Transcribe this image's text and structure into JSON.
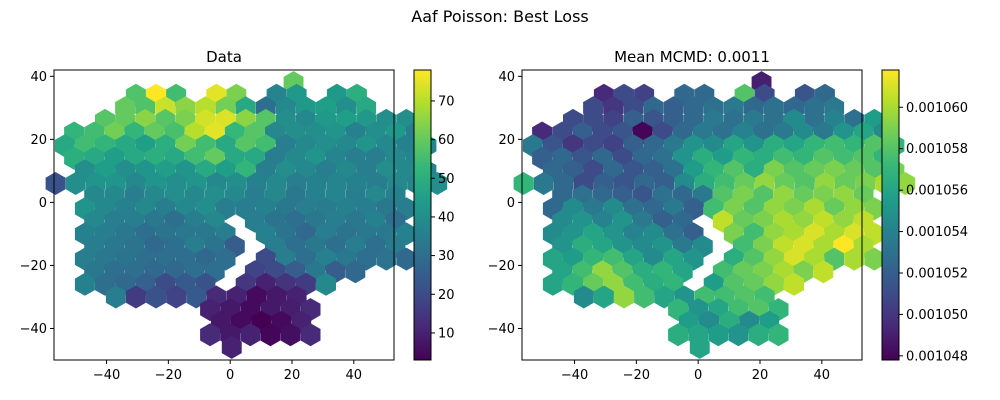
{
  "suptitle": "Aaf Poisson: Best Loss",
  "chart_data": [
    {
      "type": "heatmap",
      "subtype": "hexbin",
      "title": "Data",
      "xlabel": "",
      "ylabel": "",
      "xlim": [
        -57,
        53
      ],
      "ylim": [
        -50,
        42
      ],
      "xticks": [
        -40,
        -20,
        0,
        20,
        40
      ],
      "yticks": [
        -40,
        -20,
        0,
        20,
        40
      ],
      "xtick_labels": [
        "−40",
        "−20",
        "0",
        "20",
        "40"
      ],
      "ytick_labels": [
        "−40",
        "−20",
        "0",
        "20",
        "40"
      ],
      "colormap": "viridis",
      "colorbar": {
        "min": 3,
        "max": 78,
        "ticks": [
          10,
          20,
          30,
          40,
          50,
          60,
          70
        ],
        "tick_labels": [
          "10",
          "20",
          "30",
          "40",
          "50",
          "60",
          "70"
        ]
      },
      "hex_spacing": [
        6.5,
        7.8
      ],
      "rows": [
        {
          "y": 38,
          "x0": 20.5,
          "values": [
            60
          ]
        },
        {
          "y": 34,
          "x0": -30.5,
          "values": [
            57,
            78,
            55,
            null,
            75,
            63,
            null,
            37,
            43,
            null,
            43,
            50
          ]
        },
        {
          "y": 30,
          "x0": -34,
          "values": [
            60,
            57,
            72,
            65,
            70,
            62,
            48,
            30,
            38,
            43,
            45,
            40,
            48
          ]
        },
        {
          "y": 26,
          "x0": -40.5,
          "values": [
            58,
            60,
            65,
            58,
            63,
            73,
            74,
            65,
            58,
            40,
            38,
            43,
            45,
            43,
            40,
            40
          ]
        },
        {
          "y": 22,
          "x0": -50.5,
          "values": [
            52,
            55,
            62,
            52,
            60,
            56,
            70,
            75,
            53,
            58,
            38,
            40,
            40,
            42,
            36,
            40,
            43,
            35
          ]
        },
        {
          "y": 18,
          "x0": -53.5,
          "values": [
            48,
            55,
            52,
            48,
            45,
            50,
            62,
            55,
            48,
            58,
            55,
            35,
            38,
            40,
            38,
            42,
            38,
            36,
            37
          ]
        },
        {
          "y": 14,
          "x0": -50.5,
          "values": [
            50,
            48,
            45,
            48,
            50,
            48,
            55,
            60,
            48,
            48,
            35,
            38,
            42,
            37,
            35,
            35,
            38,
            37
          ]
        },
        {
          "y": 10,
          "x0": -47,
          "values": [
            40,
            45,
            40,
            42,
            45,
            42,
            48,
            45,
            52,
            35,
            40,
            38,
            35,
            38,
            35,
            40,
            38,
            36
          ]
        },
        {
          "y": 6,
          "x0": -56.5,
          "values": [
            22,
            40,
            42,
            42,
            38,
            42,
            40,
            42,
            38,
            40,
            36,
            38,
            35,
            36,
            37,
            36,
            35,
            38,
            37,
            40
          ]
        },
        {
          "y": 2,
          "x0": -44,
          "values": [
            38,
            38,
            35,
            38,
            40,
            38,
            40,
            38,
            35,
            38,
            33,
            36,
            37,
            35,
            38,
            36
          ]
        },
        {
          "y": -2,
          "x0": -47,
          "values": [
            42,
            38,
            36,
            38,
            35,
            38,
            40,
            35,
            35,
            36,
            33,
            35,
            34,
            36,
            35,
            33,
            35
          ]
        },
        {
          "y": -6,
          "x0": -44,
          "values": [
            38,
            35,
            35,
            33,
            30,
            35,
            38,
            null,
            35,
            32,
            30,
            33,
            35,
            33,
            36,
            30
          ]
        },
        {
          "y": -10,
          "x0": -47,
          "values": [
            36,
            35,
            33,
            30,
            32,
            33,
            33,
            35,
            null,
            36,
            32,
            28,
            35,
            32,
            33,
            33,
            36
          ]
        },
        {
          "y": -14,
          "x0": -44,
          "values": [
            35,
            33,
            32,
            28,
            30,
            35,
            32,
            25,
            null,
            35,
            30,
            33,
            30,
            35,
            30,
            34
          ]
        },
        {
          "y": -18,
          "x0": -47,
          "values": [
            35,
            33,
            32,
            30,
            30,
            30,
            28,
            30,
            null,
            20,
            35,
            30,
            36,
            33,
            30,
            32,
            28
          ]
        },
        {
          "y": -22,
          "x0": -44,
          "values": [
            33,
            30,
            30,
            28,
            28,
            30,
            30,
            null,
            18,
            20,
            25,
            33,
            25,
            28
          ]
        },
        {
          "y": -26,
          "x0": -47,
          "values": [
            36,
            30,
            28,
            26,
            20,
            24,
            22,
            null,
            15,
            10,
            14,
            16,
            38
          ]
        },
        {
          "y": -30,
          "x0": -37,
          "values": [
            35,
            16,
            22,
            18,
            24,
            12,
            10,
            5,
            8,
            10
          ]
        },
        {
          "y": -34,
          "x0": -6.5,
          "values": [
            10,
            8,
            5,
            8,
            9,
            12
          ]
        },
        {
          "y": -38,
          "x0": -3,
          "values": [
            8,
            5,
            3,
            5,
            10
          ]
        },
        {
          "y": -42,
          "x0": -6.5,
          "values": [
            12,
            8,
            10,
            4,
            6,
            12
          ]
        },
        {
          "y": -46,
          "x0": 0.5,
          "values": [
            10
          ]
        }
      ]
    },
    {
      "type": "heatmap",
      "subtype": "hexbin",
      "title": "Mean MCMD: 0.0011",
      "xlabel": "",
      "ylabel": "",
      "xlim": [
        -57,
        53
      ],
      "ylim": [
        -50,
        42
      ],
      "xticks": [
        -40,
        -20,
        0,
        20,
        40
      ],
      "yticks": [
        -40,
        -20,
        0,
        20,
        40
      ],
      "xtick_labels": [
        "−40",
        "−20",
        "0",
        "20",
        "40"
      ],
      "ytick_labels": [
        "−40",
        "−20",
        "0",
        "20",
        "40"
      ],
      "colormap": "viridis",
      "colorbar": {
        "min": 0.0010478,
        "max": 0.0010618,
        "ticks": [
          0.001048,
          0.00105,
          0.001052,
          0.001054,
          0.001056,
          0.001058,
          0.00106
        ],
        "tick_labels": [
          "0.001048",
          "0.001050",
          "0.001052",
          "0.001054",
          "0.001056",
          "0.001058",
          "0.001060"
        ]
      },
      "hex_spacing": [
        6.5,
        7.8
      ],
      "rows": [
        {
          "y": 38,
          "x0": 20.5,
          "values": [
            0.001049
          ]
        },
        {
          "y": 34,
          "x0": -30.5,
          "values": [
            0.0010495,
            0.001051,
            0.0010505,
            null,
            0.0010525,
            0.0010525,
            null,
            0.001058,
            0.001051,
            null,
            0.0010515,
            0.0010525
          ]
        },
        {
          "y": 30,
          "x0": -34,
          "values": [
            0.001051,
            0.00105,
            0.001051,
            0.0010525,
            0.001052,
            0.0010525,
            0.001053,
            0.0010535,
            0.0010525,
            0.001053,
            0.0010525,
            0.001053,
            0.0010535
          ]
        },
        {
          "y": 26,
          "x0": -40.5,
          "values": [
            0.001051,
            0.001051,
            0.0010505,
            0.001052,
            0.0010515,
            0.001052,
            0.0010525,
            0.0010535,
            0.001053,
            0.0010535,
            0.001053,
            0.0010545,
            0.001053,
            0.001054,
            0.001053,
            0.0010555
          ]
        },
        {
          "y": 22,
          "x0": -50.5,
          "values": [
            0.0010495,
            0.001051,
            0.001052,
            0.001051,
            0.0010515,
            0.001048,
            0.001051,
            0.0010525,
            0.0010535,
            0.001053,
            0.001054,
            0.001053,
            0.0010535,
            0.0010545,
            0.0010535,
            0.001055,
            0.001056,
            0.0010545
          ]
        },
        {
          "y": 18,
          "x0": -53.5,
          "values": [
            0.0010535,
            0.0010515,
            0.00105,
            0.001051,
            0.0010505,
            0.001052,
            0.0010525,
            0.0010535,
            0.001055,
            0.0010545,
            0.001056,
            0.001055,
            0.0010565,
            0.001056,
            0.001057,
            0.0010575,
            0.001057,
            0.001058,
            0.001057
          ]
        },
        {
          "y": 14,
          "x0": -50.5,
          "values": [
            0.001052,
            0.0010525,
            0.0010515,
            0.0010525,
            0.001051,
            0.0010525,
            0.001053,
            0.001055,
            0.0010565,
            0.0010555,
            0.001057,
            0.0010565,
            0.0010575,
            0.001057,
            0.001058,
            0.0010575,
            0.001058,
            0.001057
          ]
        },
        {
          "y": 10,
          "x0": -47,
          "values": [
            0.0010525,
            0.001052,
            0.001051,
            0.0010525,
            0.0010515,
            0.001052,
            0.001053,
            0.0010555,
            0.001057,
            0.001058,
            0.0010565,
            0.001059,
            0.001058,
            0.0010585,
            0.001059,
            0.0010585,
            0.001058,
            0.001059
          ]
        },
        {
          "y": 6,
          "x0": -56.5,
          "values": [
            0.001057,
            0.0010535,
            0.0010525,
            0.001051,
            0.001052,
            0.0010515,
            0.0010525,
            0.001052,
            0.0010545,
            0.0010565,
            0.0010575,
            0.0010585,
            0.0010595,
            0.0010585,
            0.001058,
            0.0010595,
            0.0010585,
            0.001059,
            0.00106,
            0.0010595
          ]
        },
        {
          "y": 2,
          "x0": -44,
          "values": [
            0.0010525,
            0.001053,
            0.0010525,
            0.001052,
            0.0010515,
            0.001053,
            0.0010525,
            0.0010535,
            0.001058,
            0.001059,
            0.001058,
            0.0010595,
            0.0010585,
            0.001059,
            0.0010595,
            0.0010585
          ]
        },
        {
          "y": -2,
          "x0": -47,
          "values": [
            0.0010525,
            0.0010545,
            0.0010535,
            0.0010545,
            0.001053,
            0.0010525,
            0.0010535,
            0.001052,
            0.0010575,
            0.001059,
            0.001058,
            0.0010595,
            0.001059,
            0.00106,
            0.0010585,
            0.0010595,
            0.001059
          ]
        },
        {
          "y": -6,
          "x0": -44,
          "values": [
            0.0010545,
            0.001055,
            0.001054,
            0.001055,
            0.0010535,
            0.001052,
            0.0010525,
            null,
            0.0010605,
            0.0010585,
            0.001059,
            0.00106,
            0.0010595,
            0.0010605,
            0.0010595,
            0.0010605
          ]
        },
        {
          "y": -10,
          "x0": -47,
          "values": [
            0.0010545,
            0.001055,
            0.001056,
            0.001055,
            0.001054,
            0.0010545,
            0.001053,
            0.001052,
            null,
            0.001059,
            0.0010575,
            0.0010595,
            0.00106,
            0.001061,
            0.00106,
            0.001061,
            0.0010605
          ]
        },
        {
          "y": -14,
          "x0": -44,
          "values": [
            0.001055,
            0.0010565,
            0.001056,
            0.001055,
            0.0010545,
            0.001055,
            0.0010535,
            0.0010545,
            null,
            0.0010575,
            0.001059,
            0.0010605,
            0.001061,
            0.00106,
            0.0010618,
            0.00106
          ]
        },
        {
          "y": -18,
          "x0": -47,
          "values": [
            0.001056,
            0.0010555,
            0.001057,
            0.0010575,
            0.001056,
            0.0010545,
            0.001056,
            0.001055,
            null,
            0.0010565,
            0.001058,
            0.0010595,
            0.001061,
            0.00106,
            0.001058,
            0.00106,
            0.001059
          ]
        },
        {
          "y": -22,
          "x0": -44,
          "values": [
            0.001056,
            0.0010575,
            0.0010595,
            0.001058,
            0.0010565,
            0.001057,
            0.001056,
            null,
            0.0010575,
            0.0010585,
            0.001059,
            0.00106,
            0.001059,
            0.0010605
          ]
        },
        {
          "y": -26,
          "x0": -47,
          "values": [
            0.001056,
            0.001057,
            0.0010585,
            0.0010595,
            0.0010575,
            0.0010565,
            0.001057,
            null,
            0.0010555,
            0.001058,
            0.0010585,
            0.0010595,
            0.0010605
          ]
        },
        {
          "y": -30,
          "x0": -37,
          "values": [
            0.0010545,
            0.001056,
            0.0010595,
            0.0010575,
            0.001056,
            0.001055,
            0.0010575,
            0.0010575,
            0.001058,
            0.0010575
          ]
        },
        {
          "y": -34,
          "x0": -6.5,
          "values": [
            0.001057,
            0.001055,
            0.001056,
            0.0010575,
            0.001058,
            0.001057
          ]
        },
        {
          "y": -38,
          "x0": -3,
          "values": [
            0.0010555,
            0.0010545,
            0.0010565,
            0.0010545,
            0.0010555
          ]
        },
        {
          "y": -42,
          "x0": -6.5,
          "values": [
            0.0010565,
            0.001056,
            0.0010555,
            0.001055,
            0.0010565,
            0.001057
          ]
        },
        {
          "y": -46,
          "x0": 0.5,
          "values": [
            0.001056
          ]
        }
      ]
    }
  ]
}
